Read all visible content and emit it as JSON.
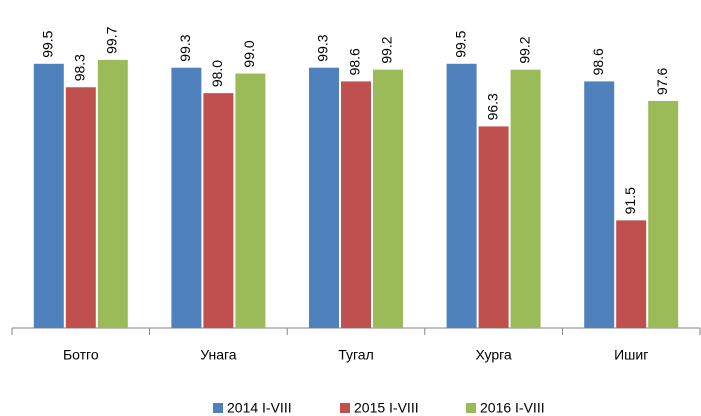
{
  "chart_data": {
    "type": "bar",
    "categories": [
      "Ботго",
      "Унага",
      "Тугал",
      "Хурга",
      "Ишиг"
    ],
    "series": [
      {
        "name": "2014 I-VIII",
        "color": "#4f81bd",
        "values": [
          99.5,
          99.3,
          99.3,
          99.5,
          98.6
        ],
        "value_labels": [
          "99.5",
          "99.3",
          "99.3",
          "99.5",
          "98.6"
        ]
      },
      {
        "name": "2015 I-VIII",
        "color": "#c0504d",
        "values": [
          98.3,
          98.0,
          98.6,
          96.3,
          91.5
        ],
        "value_labels": [
          "98.3",
          "98.0",
          "98.6",
          "96.3",
          "91.5"
        ]
      },
      {
        "name": "2016 I-VIII",
        "color": "#9bbb59",
        "values": [
          99.7,
          99.0,
          99.2,
          99.2,
          97.6
        ],
        "value_labels": [
          "99.7",
          "99.0",
          "99.2",
          "99.2",
          "97.6"
        ]
      }
    ],
    "ylim": [
      86,
      100
    ],
    "legend": "bottom"
  }
}
